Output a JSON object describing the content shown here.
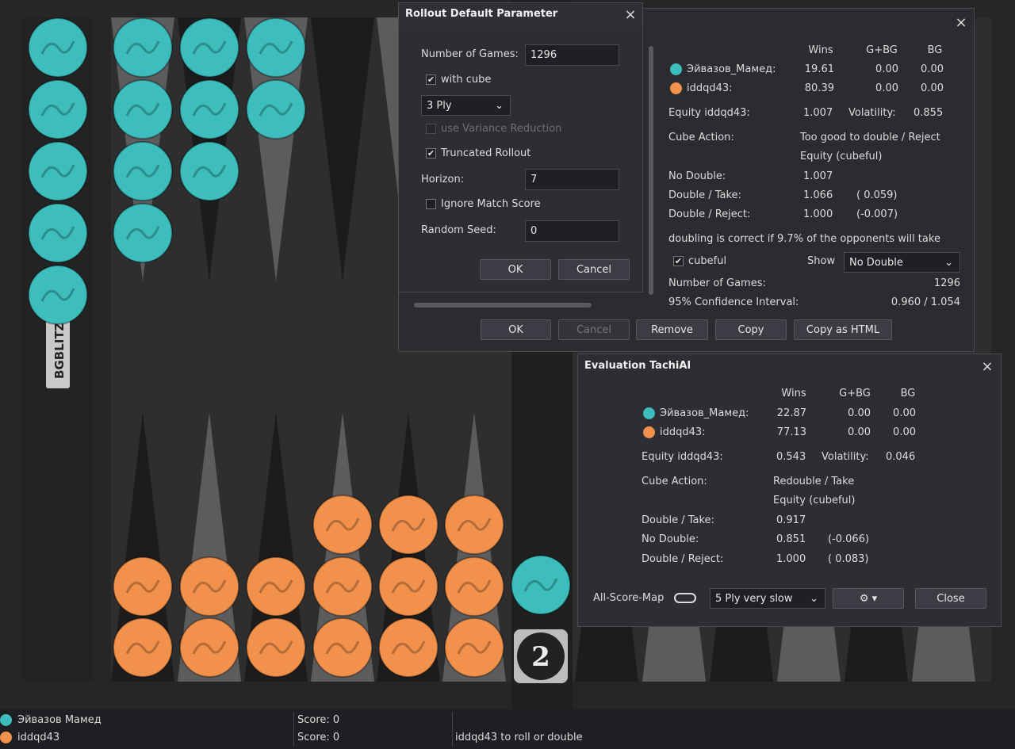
{
  "board": {
    "bar_label": "BGBLITZ",
    "cube": "2"
  },
  "rollout_parameter": {
    "title": "Rollout Default Parameter",
    "games_label": "Number of Games:",
    "games": "1296",
    "with_cube": "with cube",
    "ply": "3 Ply",
    "variance": "use Variance Reduction",
    "truncated": "Truncated Rollout",
    "horizon_label": "Horizon:",
    "horizon": "7",
    "ignore": "Ignore Match Score",
    "seed_label": "Random Seed:",
    "seed": "0",
    "buttons": [
      "OK",
      "Cancel"
    ]
  },
  "rollout_result": {
    "columns": [
      "Wins",
      "G+BG",
      "BG"
    ],
    "rows": [
      {
        "player": "Эйвазов_Мамед:",
        "values": [
          "19.61",
          "0.00",
          "0.00"
        ]
      },
      {
        "player": "iddqd43:",
        "values": [
          "80.39",
          "0.00",
          "0.00"
        ]
      }
    ],
    "equity_label": "Equity iddqd43:",
    "equity": "1.007",
    "volatility_label": "Volatility:",
    "volatility": "0.855",
    "cube_action_label": "Cube Action:",
    "cube_action": "Too good to double / Reject",
    "equity_type": "Equity (cubeful)",
    "decisions": [
      {
        "label": "No Double:",
        "value": "1.007"
      },
      {
        "label": "Double / Take:",
        "value": "1.066",
        "diff": "( 0.059)"
      },
      {
        "label": "Double / Reject:",
        "value": "1.000",
        "diff": "(-0.007)"
      }
    ],
    "note": "doubling is correct if 9.7% of the opponents will take",
    "cubeful": "cubeful",
    "show_label": "Show",
    "show": "No Double",
    "games_label": "Number of Games:",
    "games": "1296",
    "ci_label": "95% Confidence Interval:",
    "ci": "0.960 / 1.054",
    "buttons": [
      "OK",
      "Cancel",
      "Remove",
      "Copy",
      "Copy as HTML"
    ]
  },
  "evaluation": {
    "title": "Evaluation TachiAI",
    "columns": [
      "Wins",
      "G+BG",
      "BG"
    ],
    "rows": [
      {
        "player": "Эйвазов_Мамед:",
        "values": [
          "22.87",
          "0.00",
          "0.00"
        ]
      },
      {
        "player": "iddqd43:",
        "values": [
          "77.13",
          "0.00",
          "0.00"
        ]
      }
    ],
    "equity_label": "Equity iddqd43:",
    "equity": "0.543",
    "volatility_label": "Volatility:",
    "volatility": "0.046",
    "cube_action_label": "Cube Action:",
    "cube_action": "Redouble / Take",
    "equity_type": "Equity (cubeful)",
    "decisions": [
      {
        "label": "Double / Take:",
        "value": "0.917"
      },
      {
        "label": "No Double:",
        "value": "0.851",
        "diff": "(-0.066)"
      },
      {
        "label": "Double / Reject:",
        "value": "1.000",
        "diff": "( 0.083)"
      }
    ],
    "score_map": "All-Score-Map",
    "ply": "5 Ply very slow",
    "close": "Close"
  },
  "status": {
    "players": [
      {
        "name": "Эйвазов Мамед",
        "score": "Score: 0"
      },
      {
        "name": "iddqd43",
        "score": "Score: 0"
      }
    ],
    "message": "iddqd43 to roll or double"
  }
}
